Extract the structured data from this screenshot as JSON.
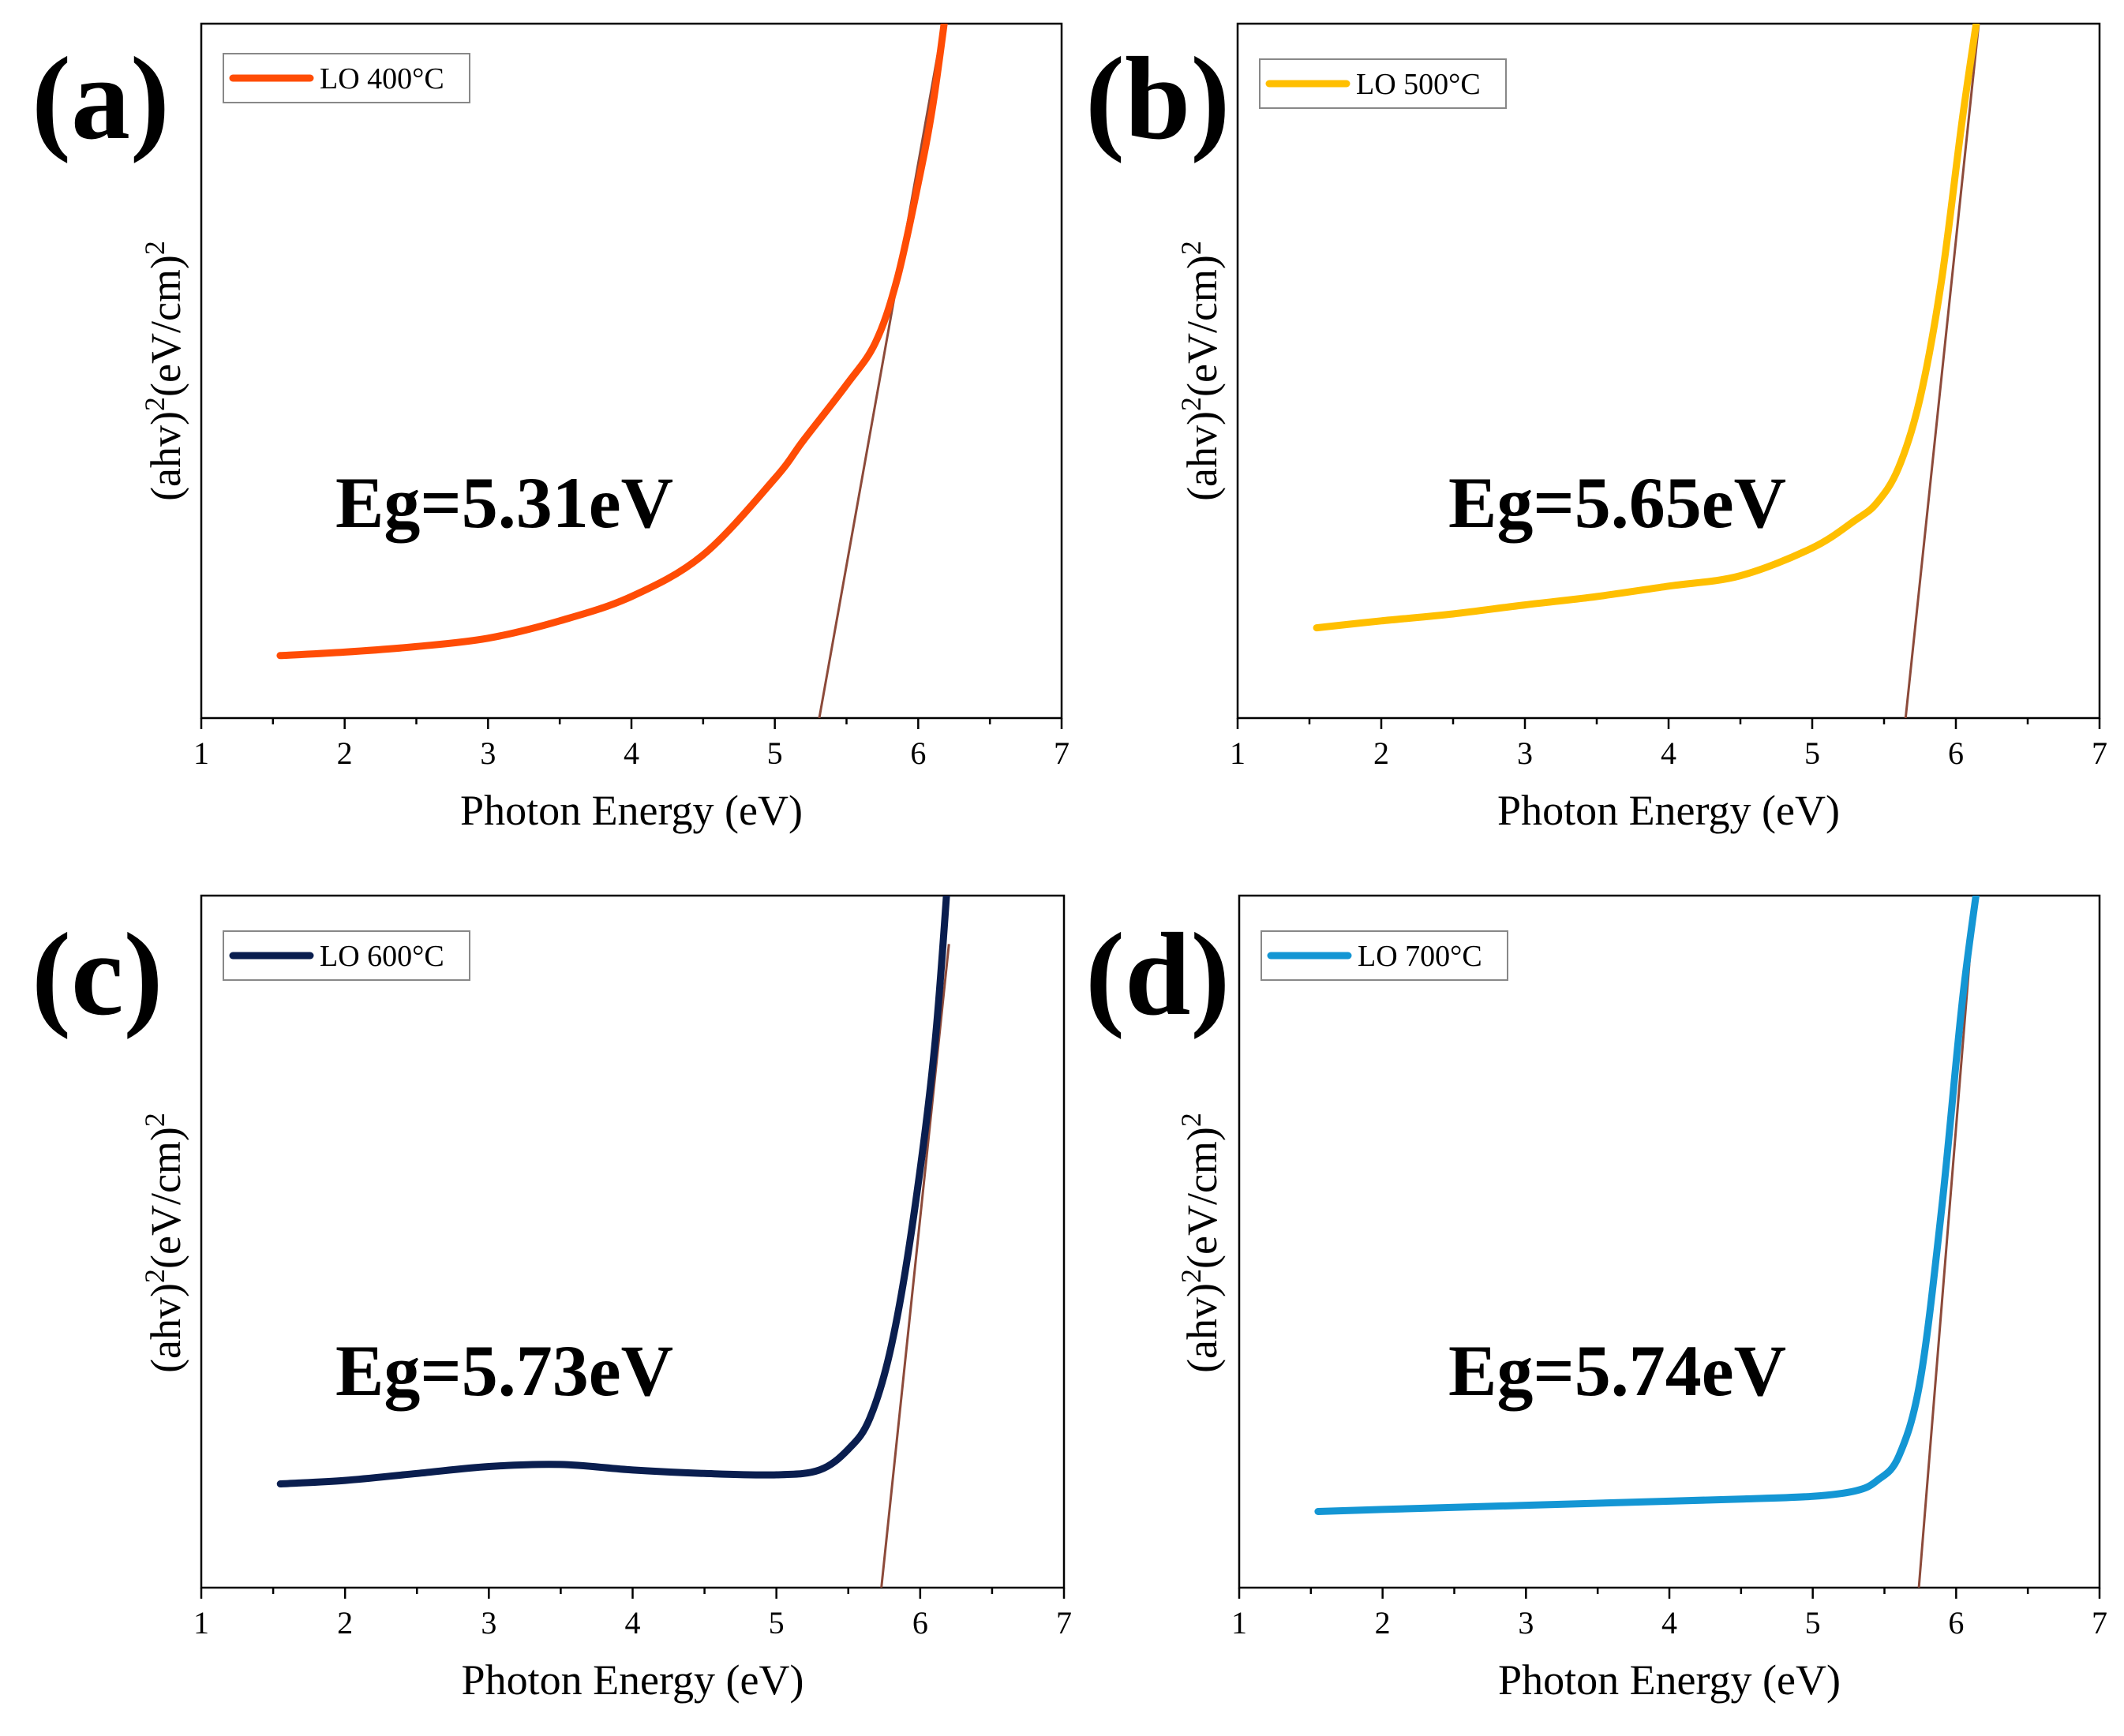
{
  "figure": {
    "panels": [
      {
        "label": "(a)",
        "legend": "LO 400°C",
        "color": "#ff4c05",
        "eg_text": "Eg=5.31eV",
        "eg_value": 5.31,
        "fit": {
          "x1": 5.31,
          "y1": 0.0,
          "x2": 6.2,
          "y2": 1.03
        },
        "curve": [
          [
            1.55,
            0.09
          ],
          [
            2.0,
            0.095
          ],
          [
            2.5,
            0.103
          ],
          [
            3.0,
            0.115
          ],
          [
            3.5,
            0.14
          ],
          [
            4.0,
            0.175
          ],
          [
            4.5,
            0.235
          ],
          [
            5.0,
            0.345
          ],
          [
            5.2,
            0.4
          ],
          [
            5.5,
            0.48
          ],
          [
            5.7,
            0.54
          ],
          [
            5.85,
            0.63
          ],
          [
            6.0,
            0.77
          ],
          [
            6.1,
            0.88
          ],
          [
            6.2,
            1.03
          ]
        ]
      },
      {
        "label": "(b)",
        "legend": "LO 500°C",
        "color": "#ffbf00",
        "eg_text": "Eg=5.65eV",
        "eg_value": 5.65,
        "fit": {
          "x1": 5.65,
          "y1": 0.0,
          "x2": 6.2,
          "y2": 1.08
        },
        "curve": [
          [
            1.55,
            0.13
          ],
          [
            2.0,
            0.14
          ],
          [
            2.5,
            0.15
          ],
          [
            3.0,
            0.163
          ],
          [
            3.5,
            0.175
          ],
          [
            4.0,
            0.19
          ],
          [
            4.5,
            0.205
          ],
          [
            5.0,
            0.245
          ],
          [
            5.3,
            0.285
          ],
          [
            5.45,
            0.31
          ],
          [
            5.6,
            0.36
          ],
          [
            5.75,
            0.46
          ],
          [
            5.9,
            0.63
          ],
          [
            6.05,
            0.87
          ],
          [
            6.2,
            1.08
          ]
        ]
      },
      {
        "label": "(c)",
        "legend": "LO 600°C",
        "color": "#0a1e4f",
        "eg_text": "Eg=5.73eV",
        "eg_value": 5.73,
        "fit": {
          "x1": 5.73,
          "y1": 0.0,
          "x2": 6.2,
          "y2": 0.93
        },
        "curve": [
          [
            1.55,
            0.15
          ],
          [
            2.0,
            0.155
          ],
          [
            2.5,
            0.165
          ],
          [
            3.0,
            0.175
          ],
          [
            3.5,
            0.178
          ],
          [
            4.0,
            0.17
          ],
          [
            4.5,
            0.165
          ],
          [
            5.0,
            0.163
          ],
          [
            5.3,
            0.17
          ],
          [
            5.5,
            0.2
          ],
          [
            5.65,
            0.245
          ],
          [
            5.8,
            0.35
          ],
          [
            5.95,
            0.53
          ],
          [
            6.1,
            0.78
          ],
          [
            6.2,
            1.05
          ]
        ]
      },
      {
        "label": "(d)",
        "legend": "LO 700°C",
        "color": "#1496d4",
        "eg_text": "Eg=5.74eV",
        "eg_value": 5.74,
        "fit": {
          "x1": 5.74,
          "y1": 0.0,
          "x2": 6.22,
          "y2": 1.23
        },
        "curve": [
          [
            1.55,
            0.11
          ],
          [
            2.0,
            0.113
          ],
          [
            2.5,
            0.116
          ],
          [
            3.0,
            0.119
          ],
          [
            3.5,
            0.122
          ],
          [
            4.0,
            0.125
          ],
          [
            4.5,
            0.128
          ],
          [
            5.0,
            0.132
          ],
          [
            5.3,
            0.14
          ],
          [
            5.45,
            0.155
          ],
          [
            5.6,
            0.19
          ],
          [
            5.75,
            0.3
          ],
          [
            5.9,
            0.55
          ],
          [
            6.05,
            0.86
          ],
          [
            6.2,
            1.09
          ]
        ]
      }
    ],
    "xlabel": "Photon Energy (eV)",
    "ylabel_prefix": "(ahv)",
    "ylabel_sup1": "2",
    "ylabel_mid": "(eV/cm)",
    "ylabel_sup2": "2"
  },
  "chart_data": [
    {
      "type": "line",
      "title": "(a)",
      "legend": [
        "LO 400°C"
      ],
      "xlabel": "Photon Energy (eV)",
      "ylabel": "(ahv)²(eV/cm)²",
      "xlim": [
        1,
        7
      ],
      "xticks": [
        1,
        2,
        3,
        4,
        5,
        6,
        7
      ],
      "annotation": "Eg=5.31eV",
      "x": [
        1.55,
        2.0,
        2.5,
        3.0,
        3.5,
        4.0,
        4.5,
        5.0,
        5.2,
        5.5,
        5.7,
        5.85,
        6.0,
        6.1,
        6.2
      ],
      "y_relative": [
        0.09,
        0.095,
        0.103,
        0.115,
        0.14,
        0.175,
        0.235,
        0.345,
        0.4,
        0.48,
        0.54,
        0.63,
        0.77,
        0.88,
        1.03
      ],
      "tangent_intercept": 5.31
    },
    {
      "type": "line",
      "title": "(b)",
      "legend": [
        "LO 500°C"
      ],
      "xlabel": "Photon Energy (eV)",
      "ylabel": "(ahv)²(eV/cm)²",
      "xlim": [
        1,
        7
      ],
      "xticks": [
        1,
        2,
        3,
        4,
        5,
        6,
        7
      ],
      "annotation": "Eg=5.65eV",
      "x": [
        1.55,
        2.0,
        2.5,
        3.0,
        3.5,
        4.0,
        4.5,
        5.0,
        5.3,
        5.45,
        5.6,
        5.75,
        5.9,
        6.05,
        6.2
      ],
      "y_relative": [
        0.13,
        0.14,
        0.15,
        0.163,
        0.175,
        0.19,
        0.205,
        0.245,
        0.285,
        0.31,
        0.36,
        0.46,
        0.63,
        0.87,
        1.08
      ],
      "tangent_intercept": 5.65
    },
    {
      "type": "line",
      "title": "(c)",
      "legend": [
        "LO 600°C"
      ],
      "xlabel": "Photon Energy (eV)",
      "ylabel": "(ahv)²(eV/cm)²",
      "xlim": [
        1,
        7
      ],
      "xticks": [
        1,
        2,
        3,
        4,
        5,
        6,
        7
      ],
      "annotation": "Eg=5.73eV",
      "x": [
        1.55,
        2.0,
        2.5,
        3.0,
        3.5,
        4.0,
        4.5,
        5.0,
        5.3,
        5.5,
        5.65,
        5.8,
        5.95,
        6.1,
        6.2
      ],
      "y_relative": [
        0.15,
        0.155,
        0.165,
        0.175,
        0.178,
        0.17,
        0.165,
        0.163,
        0.17,
        0.2,
        0.245,
        0.35,
        0.53,
        0.78,
        1.05
      ],
      "tangent_intercept": 5.73
    },
    {
      "type": "line",
      "title": "(d)",
      "legend": [
        "LO 700°C"
      ],
      "xlabel": "Photon Energy (eV)",
      "ylabel": "(ahv)²(eV/cm)²",
      "xlim": [
        1,
        7
      ],
      "xticks": [
        1,
        2,
        3,
        4,
        5,
        6,
        7
      ],
      "annotation": "Eg=5.74eV",
      "x": [
        1.55,
        2.0,
        2.5,
        3.0,
        3.5,
        4.0,
        4.5,
        5.0,
        5.3,
        5.45,
        5.6,
        5.75,
        5.9,
        6.05,
        6.2
      ],
      "y_relative": [
        0.11,
        0.113,
        0.116,
        0.119,
        0.122,
        0.125,
        0.128,
        0.132,
        0.14,
        0.155,
        0.19,
        0.3,
        0.55,
        0.86,
        1.09
      ],
      "tangent_intercept": 5.74
    }
  ]
}
